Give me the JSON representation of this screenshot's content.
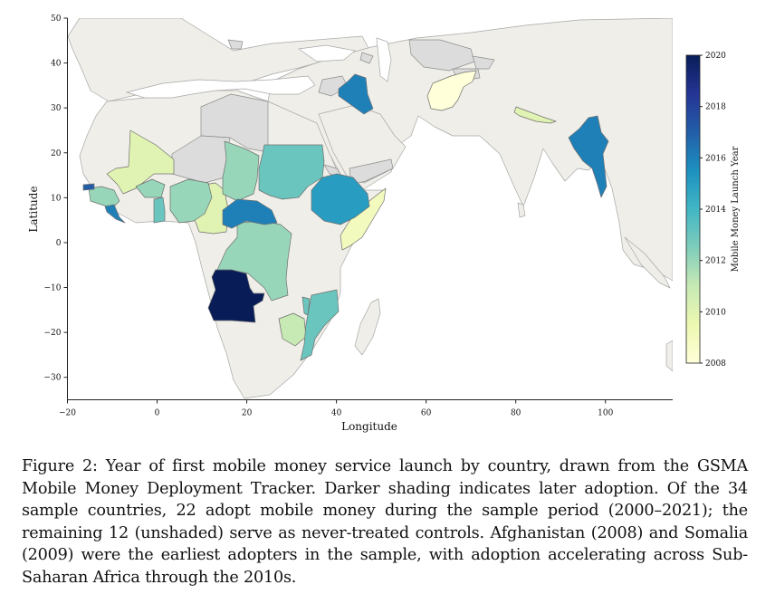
{
  "map": {
    "x_label": "Longitude",
    "y_label": "Latitude",
    "x_ticks": [
      "−20",
      "0",
      "20",
      "40",
      "60",
      "80",
      "100"
    ],
    "y_ticks": [
      "50",
      "40",
      "30",
      "20",
      "10",
      "0",
      "−10",
      "−20",
      "−30"
    ],
    "x_range": [
      -20,
      115
    ],
    "y_range": [
      -35,
      50
    ],
    "colors": {
      "land": "#efeee8",
      "sample_untreated": "#dcdcdc",
      "water": "#ffffff",
      "border": "#9e9e9e"
    }
  },
  "colorbar": {
    "label": "Mobile Money Launch Year",
    "ticks": [
      "2020",
      "2018",
      "2016",
      "2014",
      "2012",
      "2010",
      "2008"
    ],
    "range": [
      2008,
      2020
    ],
    "colormap": "YlGnBu"
  },
  "adopters": [
    {
      "country": "Afghanistan",
      "year": 2008
    },
    {
      "country": "Somalia",
      "year": 2009
    },
    {
      "country": "Nepal",
      "year": 2010
    },
    {
      "country": "Mali",
      "year": 2010
    },
    {
      "country": "Cameroon",
      "year": 2010
    },
    {
      "country": "Zimbabwe",
      "year": 2011
    },
    {
      "country": "Nigeria",
      "year": 2012
    },
    {
      "country": "Chad",
      "year": 2012
    },
    {
      "country": "DR Congo",
      "year": 2012
    },
    {
      "country": "Burkina Faso",
      "year": 2012
    },
    {
      "country": "Guinea",
      "year": 2012
    },
    {
      "country": "Ghana",
      "year": 2013
    },
    {
      "country": "Sudan",
      "year": 2013
    },
    {
      "country": "Malawi",
      "year": 2013
    },
    {
      "country": "Mozambique",
      "year": 2013
    },
    {
      "country": "Ethiopia",
      "year": 2015
    },
    {
      "country": "Myanmar",
      "year": 2016
    },
    {
      "country": "Iraq",
      "year": 2016
    },
    {
      "country": "Central African Republic",
      "year": 2016
    },
    {
      "country": "Liberia",
      "year": 2016
    },
    {
      "country": "The Gambia",
      "year": 2017
    },
    {
      "country": "Angola",
      "year": 2020
    }
  ],
  "never_treated": [
    "Libya",
    "Niger",
    "Eritrea",
    "Yemen",
    "Syria",
    "Turkmenistan",
    "Bosnia and Herzegovina",
    "Lebanon",
    "Palestine",
    "Kyrgyzstan",
    "Tajikistan",
    "Azerbaijan"
  ],
  "caption": "Figure 2: Year of first mobile money service launch by country, drawn from the GSMA Mobile Money Deployment Tracker. Darker shading indicates later adoption. Of the 34 sample countries, 22 adopt mobile money during the sample period (2000–2021); the remaining 12 (unshaded) serve as never-treated controls. Afghanistan (2008) and Somalia (2009) were the earliest adopters in the sample, with adoption accelerating across Sub-Saharan Africa through the 2010s."
}
